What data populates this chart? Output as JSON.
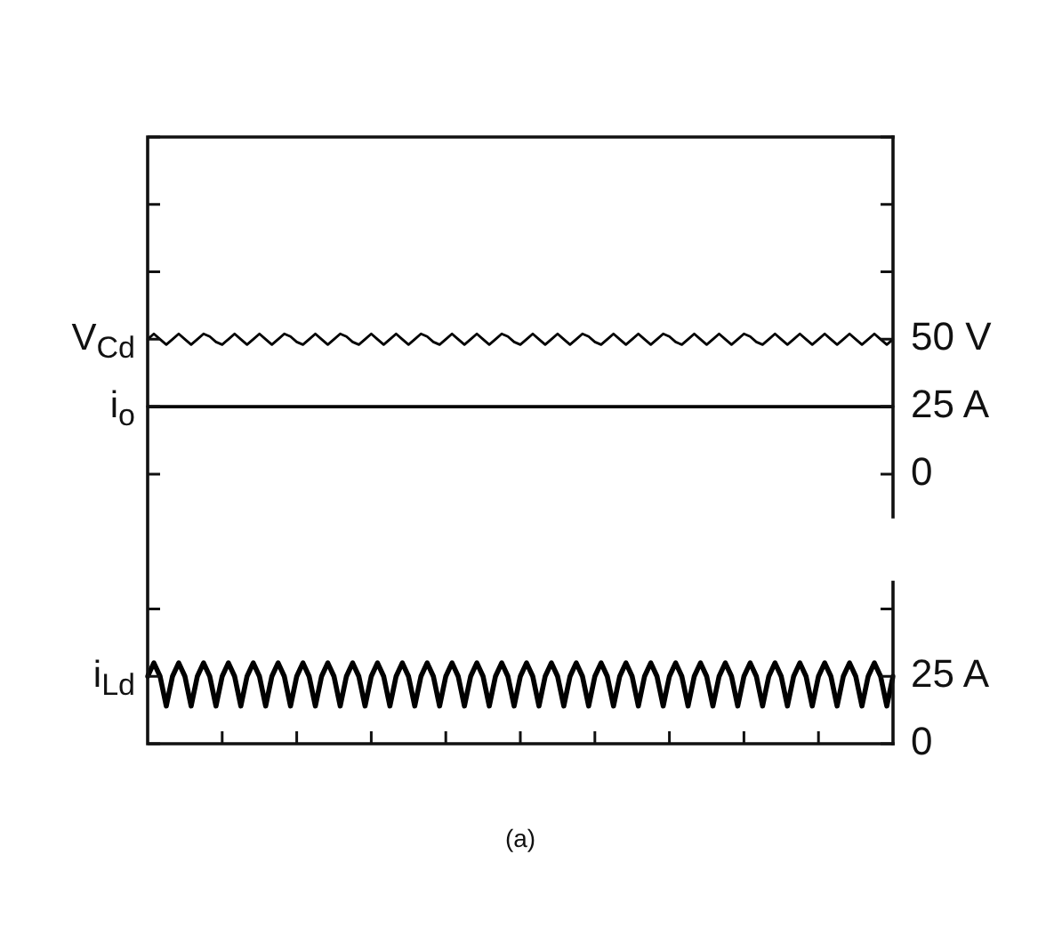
{
  "chart_data": {
    "type": "line",
    "categories": [
      null,
      null,
      null,
      null,
      null,
      null,
      null,
      null,
      null,
      null,
      null,
      null,
      null,
      null,
      null,
      null,
      null,
      null,
      null,
      null,
      null,
      null,
      null,
      null,
      null,
      null,
      null,
      null,
      null,
      null,
      null,
      null,
      null,
      null,
      null,
      null,
      null,
      null,
      null,
      null,
      null,
      null,
      null,
      null,
      null,
      null,
      null,
      null,
      null,
      null,
      null,
      null,
      null,
      null,
      null,
      null,
      null,
      null,
      null,
      null,
      null,
      null,
      null,
      null,
      null,
      null,
      null,
      null,
      null,
      null,
      null,
      null,
      null,
      null,
      null,
      null,
      null,
      null,
      null,
      null,
      null,
      null,
      null,
      null,
      null,
      null,
      null,
      null,
      null,
      null,
      null,
      null,
      null,
      null,
      null,
      null,
      null,
      null,
      null,
      null,
      null,
      null,
      null,
      null,
      null,
      null,
      null,
      null,
      null,
      null,
      null,
      null,
      null,
      null,
      null,
      null,
      null,
      null,
      null,
      null,
      null
    ],
    "series": [
      {
        "name": "V$_{Cd}$",
        "color": "#000000",
        "values": [
          50,
          52,
          50,
          48,
          50,
          52,
          50,
          48,
          50,
          52,
          51,
          49,
          48,
          50,
          52,
          50,
          48,
          50,
          52,
          50,
          48,
          50,
          52,
          51,
          49,
          48,
          50,
          52,
          50,
          48,
          50,
          52,
          51,
          49,
          48,
          50,
          52,
          50,
          48,
          50,
          52,
          50,
          48,
          50,
          52,
          51,
          49,
          48,
          50,
          52,
          50,
          48,
          50,
          52,
          50,
          48,
          50,
          52,
          51,
          49,
          48,
          50,
          52,
          50,
          48,
          50,
          52,
          50,
          48,
          50,
          52,
          51,
          49,
          48,
          50,
          52,
          50,
          48,
          50,
          52,
          50,
          48,
          50,
          52,
          51,
          49,
          48,
          50,
          52,
          50,
          48,
          50,
          52,
          50,
          48,
          50,
          52,
          51,
          49,
          48,
          50,
          52,
          50,
          48,
          50,
          52,
          50,
          48,
          50,
          52,
          50,
          48,
          50,
          52,
          50,
          48,
          50,
          52,
          50,
          48,
          50
        ]
      },
      {
        "name": "i$_{o}$",
        "color": "#000000",
        "values": [
          25,
          25,
          25,
          25,
          25,
          25,
          25,
          25,
          25,
          25,
          25,
          25,
          25,
          25,
          25,
          25,
          25,
          25,
          25,
          25,
          25,
          25,
          25,
          25,
          25,
          25,
          25,
          25,
          25,
          25,
          25,
          25,
          25,
          25,
          25,
          25,
          25,
          25,
          25,
          25,
          25,
          25,
          25,
          25,
          25,
          25,
          25,
          25,
          25,
          25,
          25,
          25,
          25,
          25,
          25,
          25,
          25,
          25,
          25,
          25,
          25,
          25,
          25,
          25,
          25,
          25,
          25,
          25,
          25,
          25,
          25,
          25,
          25,
          25,
          25,
          25,
          25,
          25,
          25,
          25,
          25,
          25,
          25,
          25,
          25,
          25,
          25,
          25,
          25,
          25,
          25,
          25,
          25,
          25,
          25,
          25,
          25,
          25,
          25,
          25,
          25,
          25,
          25,
          25,
          25,
          25,
          25,
          25,
          25,
          25,
          25,
          25,
          25,
          25,
          25,
          25,
          25,
          25,
          25,
          25,
          25
        ]
      },
      {
        "name": "i$_{Ld}$",
        "color": "#000000",
        "axis": "y2",
        "values": [
          25,
          30,
          25,
          14,
          25,
          30,
          25,
          14,
          25,
          30,
          25,
          14,
          25,
          30,
          25,
          14,
          25,
          30,
          25,
          14,
          25,
          30,
          25,
          14,
          25,
          30,
          25,
          14,
          25,
          30,
          25,
          14,
          25,
          30,
          25,
          14,
          25,
          30,
          25,
          14,
          25,
          30,
          25,
          14,
          25,
          30,
          25,
          14,
          25,
          30,
          25,
          14,
          25,
          30,
          25,
          14,
          25,
          30,
          25,
          14,
          25,
          30,
          25,
          14,
          25,
          30,
          25,
          14,
          25,
          30,
          25,
          14,
          25,
          30,
          25,
          14,
          25,
          30,
          25,
          14,
          25,
          30,
          25,
          14,
          25,
          30,
          25,
          14,
          25,
          30,
          25,
          14,
          25,
          30,
          25,
          14,
          25,
          30,
          25,
          14,
          25,
          30,
          25,
          14,
          25,
          30,
          25,
          14,
          25,
          30,
          25,
          14,
          25,
          30,
          25,
          14,
          25,
          30,
          25,
          14,
          25
        ]
      }
    ],
    "ylim": [
      -100,
      125
    ],
    "yticks": [
      0,
      {
        "value": 25,
        "label": "25 A"
      },
      {
        "value": 50,
        "label": "50 V"
      },
      {
        "value": 75,
        "label": null
      },
      {
        "value": 100,
        "label": null
      },
      {
        "value": 125,
        "label": null
      }
    ],
    "y2lim": [
      0,
      225
    ],
    "y2ticks": [
      0,
      {
        "value": 25,
        "label": "25 A"
      },
      {
        "value": 50,
        "label": null
      }
    ],
    "annotations": [
      "(a)"
    ],
    "grid": false,
    "legend": false,
    "marker": "none",
    "line_style": "solid"
  }
}
